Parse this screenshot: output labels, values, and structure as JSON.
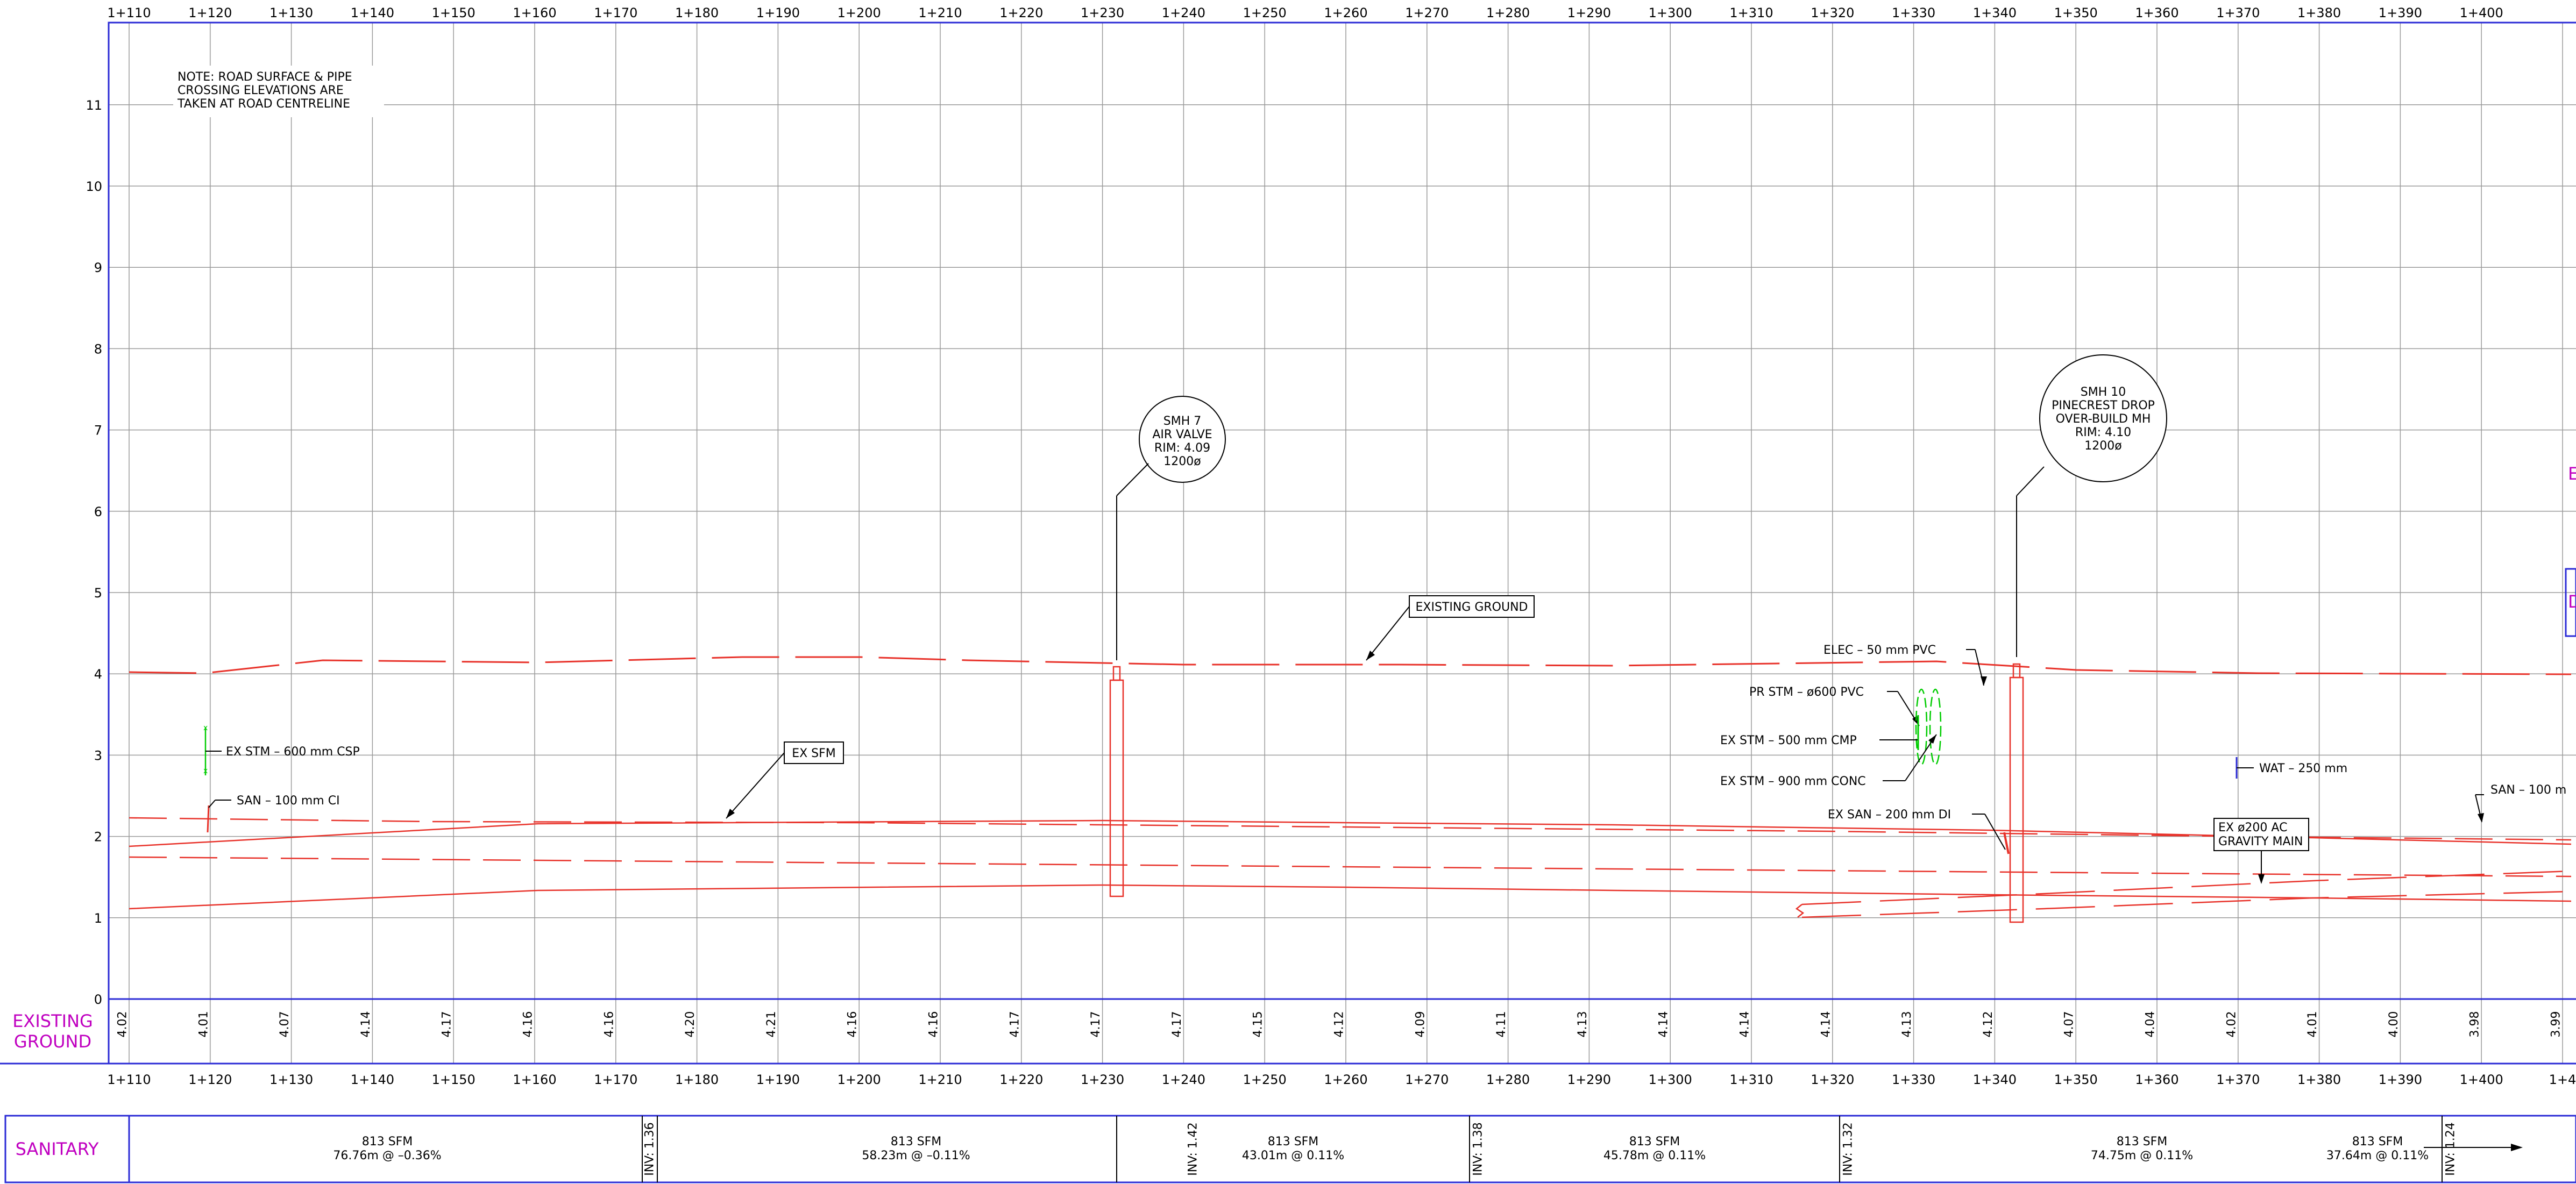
{
  "stations": [
    "1+110",
    "1+120",
    "1+130",
    "1+140",
    "1+150",
    "1+160",
    "1+170",
    "1+180",
    "1+190",
    "1+200",
    "1+210",
    "1+220",
    "1+230",
    "1+240",
    "1+250",
    "1+260",
    "1+270",
    "1+280",
    "1+290",
    "1+300",
    "1+310",
    "1+320",
    "1+330",
    "1+340",
    "1+350",
    "1+360",
    "1+370",
    "1+380",
    "1+390",
    "1+400"
  ],
  "bottom_stations": [
    "1+110",
    "1+120",
    "1+130",
    "1+140",
    "1+150",
    "1+160",
    "1+170",
    "1+180",
    "1+190",
    "1+200",
    "1+210",
    "1+220",
    "1+230",
    "1+240",
    "1+250",
    "1+260",
    "1+270",
    "1+280",
    "1+290",
    "1+300",
    "1+310",
    "1+320",
    "1+330",
    "1+340",
    "1+350",
    "1+360",
    "1+370",
    "1+380",
    "1+390",
    "1+400",
    "1+4"
  ],
  "elevations": [
    "0",
    "1",
    "2",
    "3",
    "4",
    "5",
    "6",
    "7",
    "8",
    "9",
    "10",
    "11"
  ],
  "ground_values": [
    "4.02",
    "4.01",
    "4.07",
    "4.14",
    "4.17",
    "4.16",
    "4.16",
    "4.20",
    "4.21",
    "4.16",
    "4.16",
    "4.17",
    "4.17",
    "4.17",
    "4.15",
    "4.12",
    "4.09",
    "4.11",
    "4.13",
    "4.14",
    "4.14",
    "4.14",
    "4.13",
    "4.12",
    "4.07",
    "4.04",
    "4.02",
    "4.01",
    "4.00",
    "3.98",
    "3.99"
  ],
  "row_labels": {
    "existing_ground": [
      "EXISTING",
      "GROUND"
    ],
    "sanitary": "SANITARY"
  },
  "note": [
    "NOTE: ROAD SURFACE & PIPE",
    "CROSSING ELEVATIONS ARE",
    "TAKEN AT ROAD CENTRELINE"
  ],
  "smh7": [
    "SMH 7",
    "AIR VALVE",
    "RIM: 4.09",
    "1200ø"
  ],
  "smh10": [
    "SMH 10",
    "PINECREST DROP",
    "OVER-BUILD MH",
    "RIM: 4.10",
    "1200ø"
  ],
  "labels": {
    "existing_ground": "EXISTING GROUND",
    "ex_sfm": "EX SFM",
    "ex_stm_600": "EX STM – 600 mm CSP",
    "san_100": "SAN – 100 mm CI",
    "elec_50": "ELEC – 50 mm PVC",
    "pr_stm_600": "PR STM – ø600 PVC",
    "ex_stm_500": "EX STM – 500 mm CMP",
    "ex_stm_900": "EX STM – 900 mm CONC",
    "ex_san_200": "EX SAN – 200 mm DI",
    "wat_250": "WAT – 250 mm",
    "san_100_right": "SAN – 100 m",
    "ex_ac_1": "EX ø200 AC",
    "ex_ac_2": "GRAVITY MAIN",
    "edge_e": "E",
    "edge_d": "D"
  },
  "sanitary_segments": [
    {
      "line1": "813 SFM",
      "line2": "76.76m @ –0.36%"
    },
    {
      "line1": "813 SFM",
      "line2": "58.23m @ –0.11%"
    },
    {
      "line1": "813 SFM",
      "line2": "43.01m @ 0.11%"
    },
    {
      "line1": "813 SFM",
      "line2": "45.78m @ 0.11%"
    },
    {
      "line1": "813 SFM",
      "line2": "74.75m @ 0.11%"
    },
    {
      "line1": "813 SFM",
      "line2": "37.64m @ 0.11%"
    }
  ],
  "inverts": [
    "INV: 1.36",
    "INV: 1.42",
    "INV: 1.38",
    "INV: 1.32",
    "INV: 1.24"
  ],
  "colors": {
    "grid": "#9a9a9a",
    "frame": "#2b2bd6",
    "utility": "#e8322a",
    "magenta": "#c000c0",
    "green": "#00cc00"
  }
}
